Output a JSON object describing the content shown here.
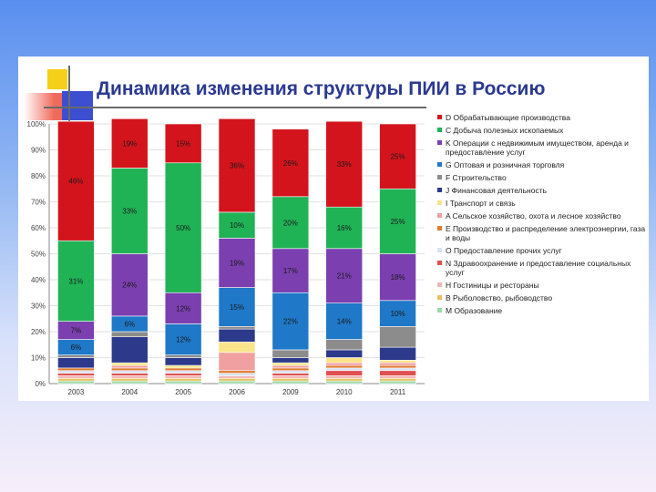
{
  "title": "Динамика изменения структуры ПИИ в Россию",
  "chart_data": {
    "type": "bar",
    "stacked": true,
    "categories": [
      "2003",
      "2004",
      "2005",
      "2006",
      "2009",
      "2010",
      "2011"
    ],
    "ylim": [
      0,
      100
    ],
    "yticks": [
      "0%",
      "10%",
      "20%",
      "30%",
      "40%",
      "50%",
      "60%",
      "70%",
      "80%",
      "90%",
      "100%"
    ],
    "legend_position": "right",
    "series": [
      {
        "name": "M Образование",
        "color": "#9ad9a8",
        "values": [
          1,
          1,
          1,
          1,
          1,
          1,
          1
        ]
      },
      {
        "name": "B Рыболовство, рыбоводство",
        "color": "#e8c05c",
        "values": [
          1,
          1,
          1,
          1,
          1,
          1,
          1
        ]
      },
      {
        "name": "H Гостиницы и рестораны",
        "color": "#f0b8b8",
        "values": [
          1,
          1,
          1,
          1,
          1,
          1,
          1
        ]
      },
      {
        "name": "N Здравоохранение и предоставление социальных услуг",
        "color": "#e05050",
        "values": [
          1,
          1,
          1,
          0,
          1,
          2,
          2
        ]
      },
      {
        "name": "O Предоставление прочих услуг",
        "color": "#d9e2f1",
        "values": [
          1,
          1,
          1,
          1,
          1,
          1,
          1
        ]
      },
      {
        "name": "E Производство и распределение электроэнергии, газа и воды",
        "color": "#e07a30",
        "values": [
          1,
          1,
          1,
          1,
          1,
          1,
          1
        ]
      },
      {
        "name": "A Сельское хозяйство, охота и лесное хозяйство",
        "color": "#f0a0a0",
        "values": [
          0,
          1,
          0,
          7,
          1,
          1,
          1
        ]
      },
      {
        "name": "I Транспорт и связь",
        "color": "#f9e48a",
        "values": [
          0,
          1,
          1,
          4,
          1,
          2,
          1
        ]
      },
      {
        "name": "J Финансовая деятельность",
        "color": "#2d3a8c",
        "values": [
          4,
          10,
          3,
          5,
          2,
          3,
          5
        ]
      },
      {
        "name": "F Строительство",
        "color": "#8c8c8c",
        "values": [
          1,
          2,
          1,
          1,
          3,
          4,
          8
        ]
      },
      {
        "name": "G Оптовая и розничная торговля",
        "color": "#1f78c8",
        "values": [
          6,
          6,
          12,
          15,
          22,
          14,
          10
        ]
      },
      {
        "name": "K Операции с недвижимым имуществом, аренда и предоставление услуг",
        "color": "#7b3fb0",
        "values": [
          7,
          24,
          12,
          19,
          17,
          21,
          18
        ]
      },
      {
        "name": "C Добыча полезных ископаемых",
        "color": "#20b356",
        "values": [
          31,
          33,
          50,
          10,
          20,
          16,
          25
        ]
      },
      {
        "name": "D Обрабатывающие производства",
        "color": "#d4141c",
        "values": [
          46,
          19,
          15,
          36,
          26,
          33,
          25
        ]
      }
    ],
    "data_labels": [
      {
        "category": "2003",
        "series": "D Обрабатывающие производства",
        "text": "46%"
      },
      {
        "category": "2003",
        "series": "C Добыча полезных ископаемых",
        "text": "31%"
      },
      {
        "category": "2003",
        "series": "K Операции с недвижимым имуществом, аренда и предоставление услуг",
        "text": "7%"
      },
      {
        "category": "2003",
        "series": "G Оптовая и розничная торговля",
        "text": "6%"
      },
      {
        "category": "2004",
        "series": "D Обрабатывающие производства",
        "text": "19%"
      },
      {
        "category": "2004",
        "series": "C Добыча полезных ископаемых",
        "text": "33%"
      },
      {
        "category": "2004",
        "series": "K Операции с недвижимым имуществом, аренда и предоставление услуг",
        "text": "24%"
      },
      {
        "category": "2004",
        "series": "G Оптовая и розничная торговля",
        "text": "6%"
      },
      {
        "category": "2005",
        "series": "D Обрабатывающие производства",
        "text": "15%"
      },
      {
        "category": "2005",
        "series": "C Добыча полезных ископаемых",
        "text": "50%"
      },
      {
        "category": "2005",
        "series": "K Операции с недвижимым имуществом, аренда и предоставление услуг",
        "text": "12%"
      },
      {
        "category": "2005",
        "series": "G Оптовая и розничная торговля",
        "text": "12%"
      },
      {
        "category": "2006",
        "series": "D Обрабатывающие производства",
        "text": "36%"
      },
      {
        "category": "2006",
        "series": "C Добыча полезных ископаемых",
        "text": "10%"
      },
      {
        "category": "2006",
        "series": "K Операции с недвижимым имуществом, аренда и предоставление услуг",
        "text": "19%"
      },
      {
        "category": "2006",
        "series": "G Оптовая и розничная торговля",
        "text": "15%"
      },
      {
        "category": "2009",
        "series": "D Обрабатывающие производства",
        "text": "26%"
      },
      {
        "category": "2009",
        "series": "C Добыча полезных ископаемых",
        "text": "20%"
      },
      {
        "category": "2009",
        "series": "K Операции с недвижимым имуществом, аренда и предоставление услуг",
        "text": "17%"
      },
      {
        "category": "2009",
        "series": "G Оптовая и розничная торговля",
        "text": "22%"
      },
      {
        "category": "2010",
        "series": "D Обрабатывающие производства",
        "text": "33%"
      },
      {
        "category": "2010",
        "series": "C Добыча полезных ископаемых",
        "text": "16%"
      },
      {
        "category": "2010",
        "series": "K Операции с недвижимым имуществом, аренда и предоставление услуг",
        "text": "21%"
      },
      {
        "category": "2010",
        "series": "G Оптовая и розничная торговля",
        "text": "14%"
      },
      {
        "category": "2011",
        "series": "D Обрабатывающие производства",
        "text": "25%"
      },
      {
        "category": "2011",
        "series": "C Добыча полезных ископаемых",
        "text": "25%"
      },
      {
        "category": "2011",
        "series": "K Операции с недвижимым имуществом, аренда и предоставление услуг",
        "text": "18%"
      },
      {
        "category": "2011",
        "series": "G Оптовая и розничная торговля",
        "text": "10%"
      }
    ]
  }
}
